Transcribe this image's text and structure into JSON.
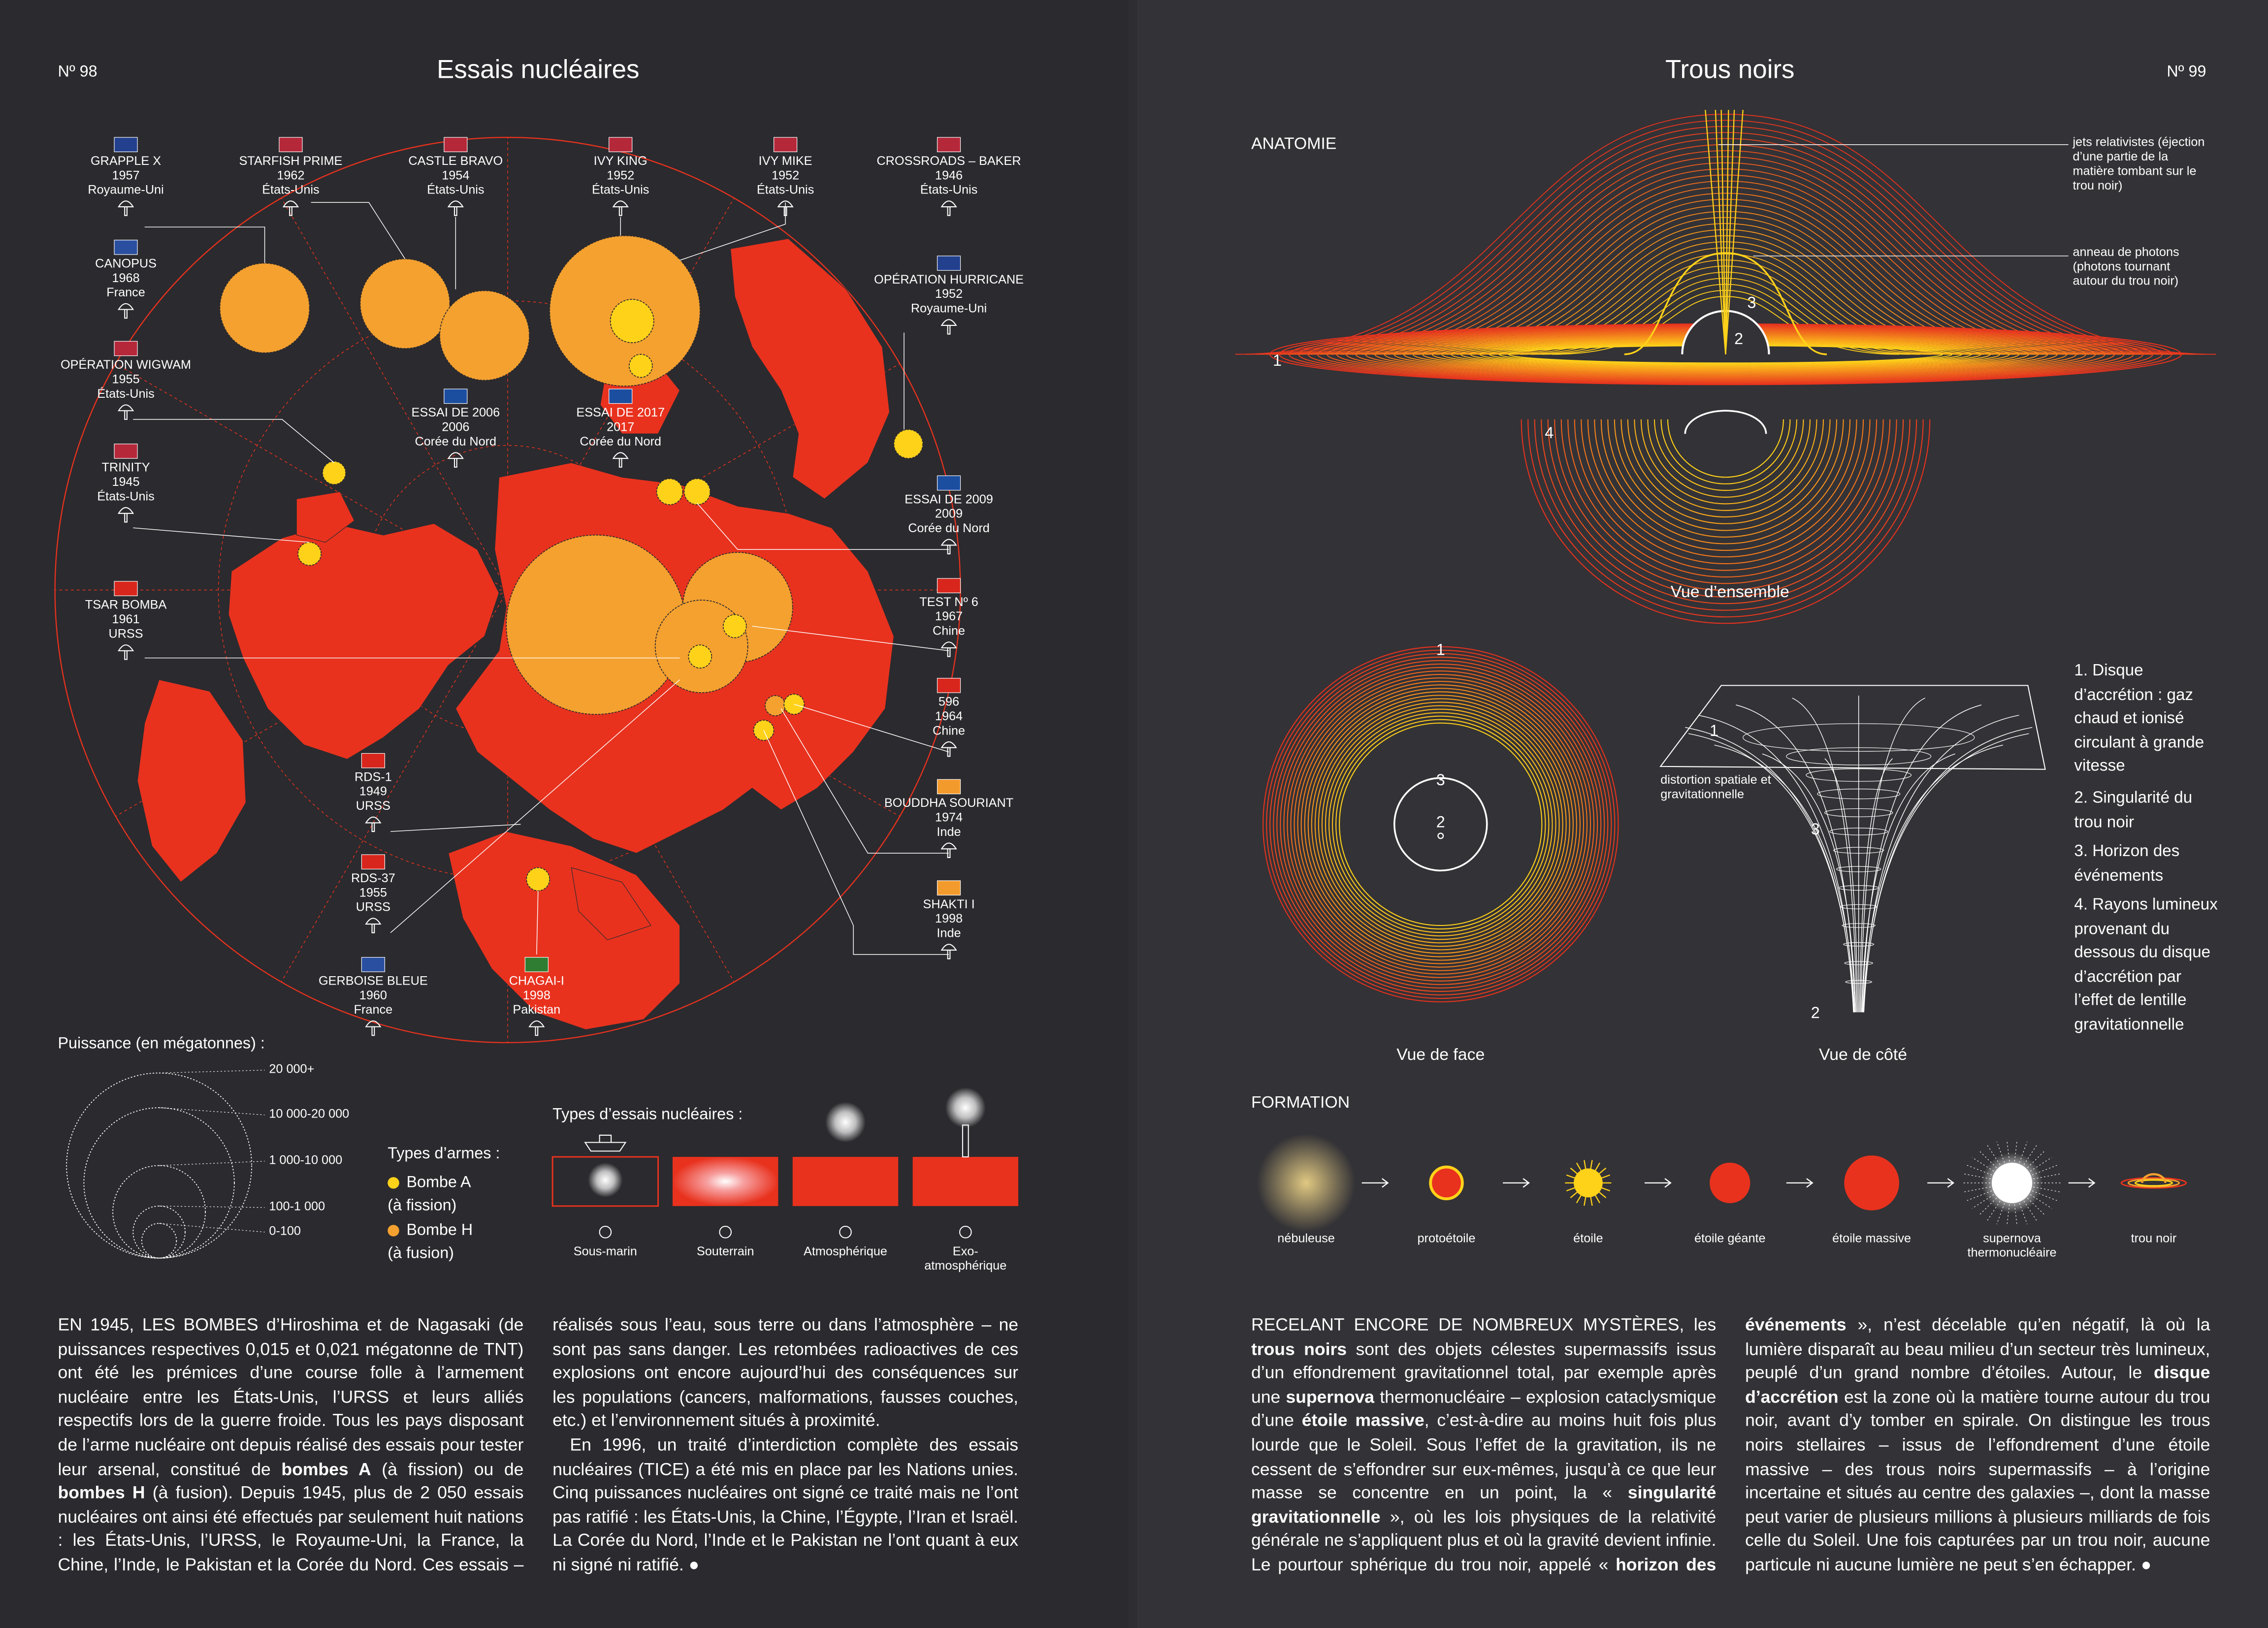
{
  "left_page": {
    "page_number": "Nº 98",
    "title": "Essais nucléaires",
    "tests": [
      {
        "name": "GRAPPLE X",
        "year": "1957",
        "country": "Royaume-Uni"
      },
      {
        "name": "STARFISH PRIME",
        "year": "1962",
        "country": "États-Unis"
      },
      {
        "name": "CASTLE BRAVO",
        "year": "1954",
        "country": "États-Unis"
      },
      {
        "name": "IVY KING",
        "year": "1952",
        "country": "États-Unis"
      },
      {
        "name": "IVY MIKE",
        "year": "1952",
        "country": "États-Unis"
      },
      {
        "name": "CROSSROADS – BAKER",
        "year": "1946",
        "country": "États-Unis"
      },
      {
        "name": "CANOPUS",
        "year": "1968",
        "country": "France"
      },
      {
        "name": "OPÉRATION HURRICANE",
        "year": "1952",
        "country": "Royaume-Uni"
      },
      {
        "name": "OPÉRATION WIGWAM",
        "year": "1955",
        "country": "États-Unis"
      },
      {
        "name": "ESSAI DE 2006",
        "year": "2006",
        "country": "Corée du Nord"
      },
      {
        "name": "ESSAI DE 2017",
        "year": "2017",
        "country": "Corée du Nord"
      },
      {
        "name": "TRINITY",
        "year": "1945",
        "country": "États-Unis"
      },
      {
        "name": "ESSAI DE 2009",
        "year": "2009",
        "country": "Corée du Nord"
      },
      {
        "name": "TSAR BOMBA",
        "year": "1961",
        "country": "URSS"
      },
      {
        "name": "TEST Nº 6",
        "year": "1967",
        "country": "Chine"
      },
      {
        "name": "596",
        "year": "1964",
        "country": "Chine"
      },
      {
        "name": "RDS-1",
        "year": "1949",
        "country": "URSS"
      },
      {
        "name": "BOUDDHA SOURIANT",
        "year": "1974",
        "country": "Inde"
      },
      {
        "name": "RDS-37",
        "year": "1955",
        "country": "URSS"
      },
      {
        "name": "SHAKTI I",
        "year": "1998",
        "country": "Inde"
      },
      {
        "name": "GERBOISE BLEUE",
        "year": "1960",
        "country": "France"
      },
      {
        "name": "CHAGAI-I",
        "year": "1998",
        "country": "Pakistan"
      }
    ],
    "power_legend": {
      "title": "Puissance (en mégatonnes) :",
      "levels": [
        "20 000+",
        "10 000-20 000",
        "1 000-10 000",
        "100-1 000",
        "0-100"
      ]
    },
    "weapon_types": {
      "title": "Types d’armes :",
      "items": [
        {
          "name": "Bombe A",
          "detail": "(à fission)"
        },
        {
          "name": "Bombe H",
          "detail": "(à fusion)"
        }
      ]
    },
    "test_types": {
      "title": "Types d’essais nucléaires :",
      "items": [
        "Sous-marin",
        "Souterrain",
        "Atmosphérique",
        "Exo-atmosphérique"
      ]
    },
    "text": [
      [
        "EN 1945, LES BOMBES d’Hiroshima et de Nagasaki (de puissances respectives 0,015 et 0,021 mégatonne de TNT) ont été les prémices d’une course folle à l’armement nucléaire entre les États-Unis, l’URSS et leurs alliés respectifs lors de la guerre froide. Tous les pays disposant de l’arme nucléaire ont depuis réalisé des essais pour tester leur arsenal, constitué de ",
        "bombes A",
        " (à fission) ou de ",
        "bombes H",
        " (à fusion). Depuis 1945, plus de 2 050 essais nucléaires ont ainsi été effectués par seulement huit nations : les États-Unis, l’URSS, le Royaume-Uni, la France, la Chine, l’Inde, le Pakistan et la Corée du Nord. Ces essais – réalisés sous l’eau, sous terre ou dans l’atmosphère – ne sont pas sans danger. Les retombées radioactives de ces explosions ont encore aujourd’hui des conséquences sur les populations (cancers, malformations, fausses couches, etc.) et l’environnement situés à proximité."
      ],
      [
        "En 1996, un traité d’interdiction complète des essais nucléaires (TICE) a été mis en place par les Nations unies. Cinq puissances nucléaires ont signé ce traité mais ne l’ont pas ratifié : les États-Unis, la Chine, l’Égypte, l’Iran et Israël. La Corée du Nord, l’Inde et le Pakistan ne l’ont quant à eux ni signé ni ratifié. ●"
      ]
    ]
  },
  "right_page": {
    "page_number": "Nº 99",
    "title": "Trous noirs",
    "anatomy": {
      "heading": "ANATOMIE",
      "annotations": [
        "jets relativistes (éjection d’une partie de la matière tombant sur le trou noir)",
        "anneau de photons (photons tournant autour du trou noir)"
      ],
      "markers": [
        "1",
        "2",
        "3",
        "4"
      ],
      "views": [
        "Vue d’ensemble",
        "Vue de face",
        "Vue de côté"
      ],
      "side_note": "distortion spatiale et gravitationnelle",
      "legend": [
        "1. Disque d’accrétion : gaz chaud et ionisé circulant à grande vitesse",
        "2. Singularité du trou noir",
        "3. Horizon des événements",
        "4. Rayons lumineux provenant du dessous du disque d’accrétion par l’effet de lentille gravitationnelle"
      ]
    },
    "formation": {
      "heading": "FORMATION",
      "stages": [
        "nébuleuse",
        "protoétoile",
        "étoile",
        "étoile géante",
        "étoile massive",
        "supernova thermonucléaire",
        "trou noir"
      ]
    },
    "text": [
      [
        "RECELANT ENCORE DE NOMBREUX MYSTÈRES, les ",
        "trous noirs",
        " sont des objets célestes supermassifs issus d’un effondrement gravitationnel total, par exemple après une ",
        "supernova",
        " thermonucléaire – explosion cataclysmique d’une ",
        "étoile massive",
        ", c’est-à-dire au moins huit fois plus lourde que le Soleil. Sous l’effet de la gravitation, ils ne cessent de s’effondrer sur eux-mêmes, jusqu’à ce que leur masse se concentre en un point, la « ",
        "singularité gravitationnelle",
        " », où les lois physiques de la relativité générale ne s’appliquent plus et où la gravité devient infinie. Le pourtour sphérique du trou noir, appelé « ",
        "horizon des événements",
        " », n’est décelable qu’en négatif, là où la lumière disparaît au beau milieu d’un secteur très lumineux, peuplé d’un grand nombre d’étoiles. Autour, le ",
        "disque d’accrétion",
        " est la zone où la matière tourne autour du trou noir, avant d’y tomber en spirale. On distingue les trous noirs stellaires – issus de l’effondrement d’une étoile massive – des trous noirs supermassifs – à l’origine incertaine et situés au centre des galaxies –, dont la masse peut varier de plusieurs millions à plusieurs milliards de fois celle du Soleil. Une fois capturées par un trou noir, aucune particule ni aucune lumière ne peut s’en échapper. ●"
      ]
    ]
  }
}
